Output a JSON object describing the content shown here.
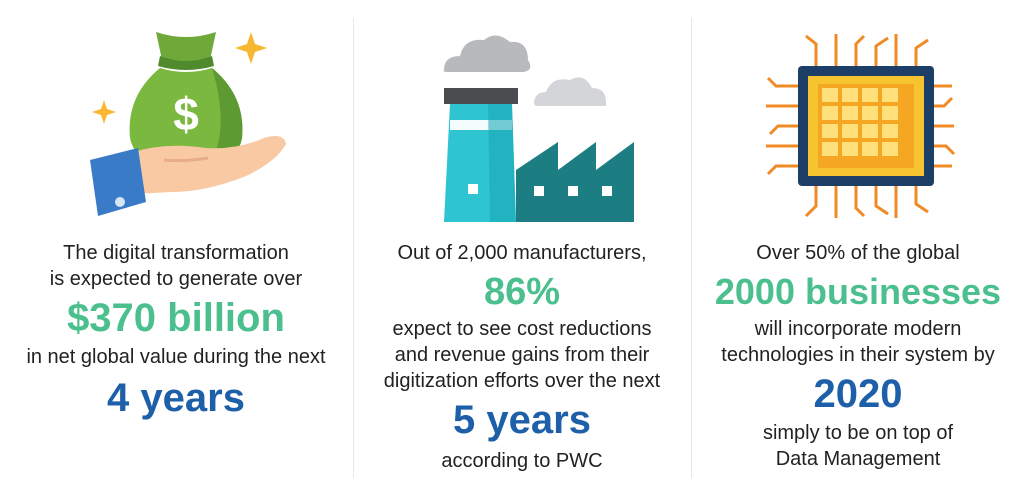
{
  "col1": {
    "line1": "The digital transformation",
    "line2": "is expected to generate over",
    "highlight": "$370 billion",
    "line3": "in net global value during the next",
    "highlight2": "4 years"
  },
  "col2": {
    "line1": "Out of 2,000 manufacturers,",
    "highlight": "86%",
    "line2": "expect to see cost reductions",
    "line3": "and revenue gains from their",
    "line4": "digitization efforts over the next",
    "highlight2": "5 years",
    "line5": "according to PWC"
  },
  "col3": {
    "line1": "Over 50% of the global",
    "highlight": "2000 businesses",
    "line2": "will incorporate modern",
    "line3": "technologies in their system by",
    "highlight2": "2020",
    "line4": "simply to be on top of",
    "line5": "Data Management"
  },
  "icons": {
    "col1": "money-bag-hand-icon",
    "col2": "factory-icon",
    "col3": "microchip-icon"
  },
  "colors": {
    "green": "#4cbf8e",
    "blue": "#1d5fa8",
    "text": "#222222"
  }
}
